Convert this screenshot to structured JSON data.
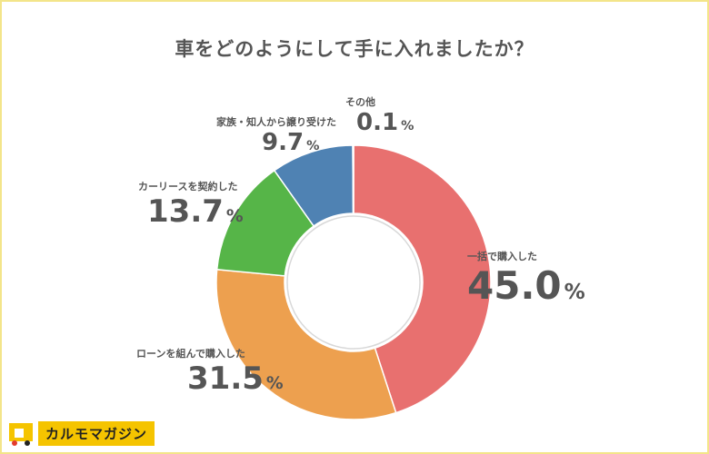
{
  "title": "車をどのようにして手に入れましたか？",
  "brand": {
    "name": "カルモマガジン"
  },
  "chart_data": {
    "type": "pie",
    "variant": "donut",
    "title": "車をどのようにして手に入れましたか？",
    "unit": "%",
    "slices": [
      {
        "label": "一括で購入した",
        "value": 45.0,
        "display": "45.0",
        "color": "#e8706f"
      },
      {
        "label": "ローンを組んで購入した",
        "value": 31.5,
        "display": "31.5",
        "color": "#eda04f"
      },
      {
        "label": "カーリースを契約した",
        "value": 13.7,
        "display": "13.7",
        "color": "#56b548"
      },
      {
        "label": "家族・知人から譲り受けた",
        "value": 9.7,
        "display": "9.7",
        "color": "#4f82b3"
      },
      {
        "label": "その他",
        "value": 0.1,
        "display": "0.1",
        "color": "#9e9e9e"
      }
    ]
  }
}
